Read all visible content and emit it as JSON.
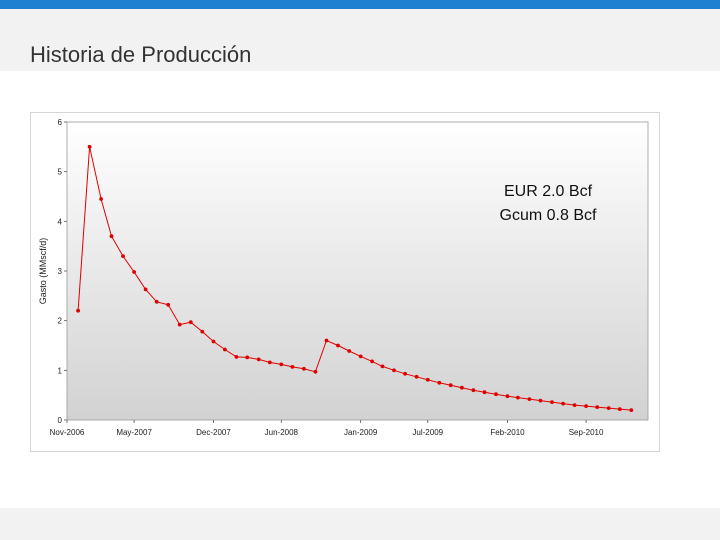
{
  "page": {
    "title": "Historia de Producción"
  },
  "colors": {
    "accent_bar": "#1f7fd0",
    "series": "#e00000"
  },
  "chart_data": {
    "type": "line",
    "title": "",
    "xlabel": "",
    "ylabel": "Gasto (MMscf/d)",
    "ylim": [
      0,
      6
    ],
    "xlim": [
      "2006-11-01",
      "2011-02-15"
    ],
    "grid": false,
    "background": "vertical gradient gray",
    "x_ticks": [
      {
        "date": "2006-11-01",
        "label": "Nov-2006"
      },
      {
        "date": "2007-05-01",
        "label": "May-2007"
      },
      {
        "date": "2007-12-01",
        "label": "Dec-2007"
      },
      {
        "date": "2008-06-01",
        "label": "Jun-2008"
      },
      {
        "date": "2009-01-01",
        "label": "Jan-2009"
      },
      {
        "date": "2009-07-01",
        "label": "Jul-2009"
      },
      {
        "date": "2010-02-01",
        "label": "Feb-2010"
      },
      {
        "date": "2010-09-01",
        "label": "Sep-2010"
      }
    ],
    "y_ticks": [
      0,
      1,
      2,
      3,
      4,
      5,
      6
    ],
    "annotations": [
      "EUR 2.0 Bcf",
      "Gcum 0.8 Bcf"
    ],
    "series": [
      {
        "name": "",
        "points": [
          [
            "2006-12-01",
            2.2
          ],
          [
            "2007-01-01",
            5.5
          ],
          [
            "2007-02-01",
            4.45
          ],
          [
            "2007-03-01",
            3.7
          ],
          [
            "2007-04-01",
            3.3
          ],
          [
            "2007-05-01",
            2.98
          ],
          [
            "2007-06-01",
            2.63
          ],
          [
            "2007-07-01",
            2.38
          ],
          [
            "2007-08-01",
            2.32
          ],
          [
            "2007-09-01",
            1.92
          ],
          [
            "2007-10-01",
            1.97
          ],
          [
            "2007-11-01",
            1.78
          ],
          [
            "2007-12-01",
            1.58
          ],
          [
            "2008-01-01",
            1.42
          ],
          [
            "2008-02-01",
            1.27
          ],
          [
            "2008-03-01",
            1.26
          ],
          [
            "2008-04-01",
            1.22
          ],
          [
            "2008-05-01",
            1.16
          ],
          [
            "2008-06-01",
            1.12
          ],
          [
            "2008-07-01",
            1.07
          ],
          [
            "2008-08-01",
            1.03
          ],
          [
            "2008-09-01",
            0.97
          ],
          [
            "2008-10-01",
            1.6
          ],
          [
            "2008-11-01",
            1.5
          ],
          [
            "2008-12-01",
            1.39
          ],
          [
            "2009-01-01",
            1.28
          ],
          [
            "2009-02-01",
            1.18
          ],
          [
            "2009-03-01",
            1.08
          ],
          [
            "2009-04-01",
            1.0
          ],
          [
            "2009-05-01",
            0.93
          ],
          [
            "2009-06-01",
            0.87
          ],
          [
            "2009-07-01",
            0.81
          ],
          [
            "2009-08-01",
            0.75
          ],
          [
            "2009-09-01",
            0.7
          ],
          [
            "2009-10-01",
            0.65
          ],
          [
            "2009-11-01",
            0.6
          ],
          [
            "2009-12-01",
            0.56
          ],
          [
            "2010-01-01",
            0.52
          ],
          [
            "2010-02-01",
            0.48
          ],
          [
            "2010-03-01",
            0.45
          ],
          [
            "2010-04-01",
            0.42
          ],
          [
            "2010-05-01",
            0.39
          ],
          [
            "2010-06-01",
            0.36
          ],
          [
            "2010-07-01",
            0.33
          ],
          [
            "2010-08-01",
            0.3
          ],
          [
            "2010-09-01",
            0.28
          ],
          [
            "2010-10-01",
            0.26
          ],
          [
            "2010-11-01",
            0.24
          ],
          [
            "2010-12-01",
            0.22
          ],
          [
            "2011-01-01",
            0.2
          ]
        ]
      }
    ]
  }
}
